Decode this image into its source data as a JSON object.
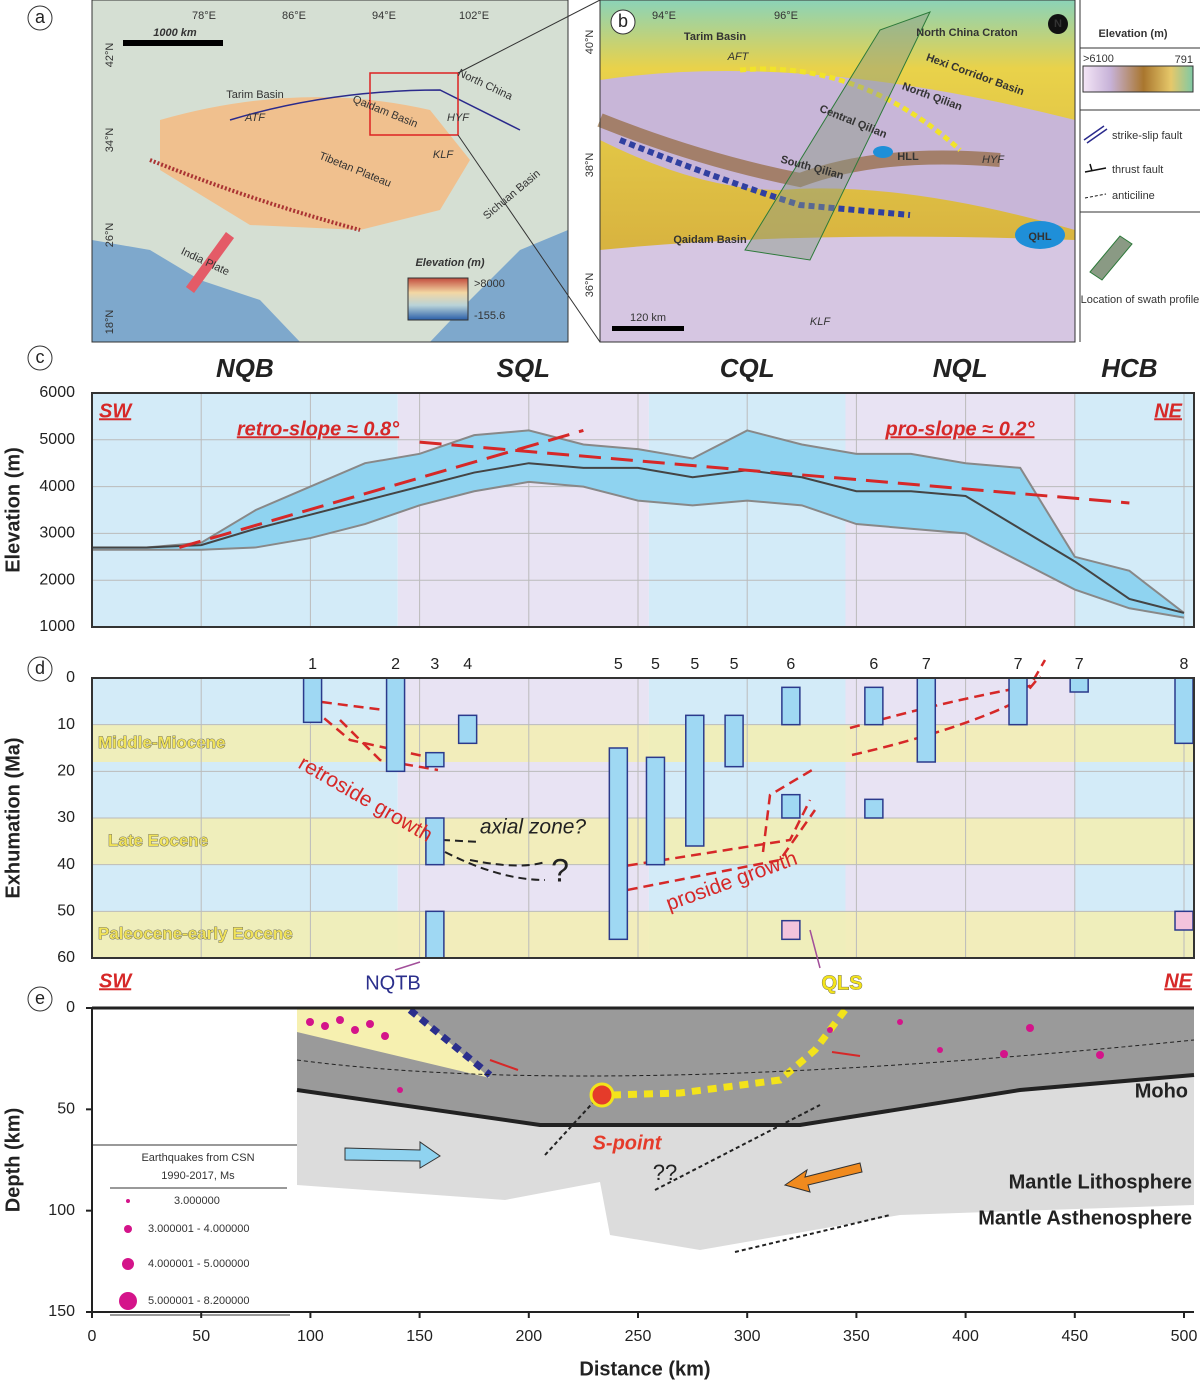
{
  "panel_a": {
    "label": "a",
    "lon": [
      "78°E",
      "86°E",
      "94°E",
      "102°E"
    ],
    "lat": [
      "42°N",
      "34°N",
      "26°N",
      "18°N"
    ],
    "scale": "1000 km",
    "places": [
      "Tarim Basin",
      "Qaidam Basin",
      "North China",
      "Tibetan Plateau",
      "Sichuan Basin",
      "India Plate",
      "ATF",
      "HYF",
      "KLF"
    ],
    "legend_title": "Elevation (m)",
    "legend_max": ">8000",
    "legend_min": "-155.6"
  },
  "panel_b": {
    "label": "b",
    "lon": [
      "94°E",
      "96°E"
    ],
    "lat": [
      "40°N",
      "38°N",
      "36°N"
    ],
    "scale": "120 km",
    "north": "N",
    "places": [
      "Tarim Basin",
      "AFT",
      "North China Craton",
      "Hexi Corridor Basin",
      "North Qilian",
      "Central Qilian",
      "South Qilian",
      "HLL",
      "HYF",
      "Qaidam Basin",
      "QHL",
      "KLF"
    ]
  },
  "legend": {
    "title": "Elevation (m)",
    "max": ">6100",
    "min": "791",
    "items": [
      "strike-slip fault",
      "thrust fault",
      "anticiline",
      "Location of swath profile"
    ]
  },
  "chart_data": [
    {
      "type": "line",
      "label": "c",
      "ylabel": "Elevation (m)",
      "xlim": [
        0,
        500
      ],
      "ylim": [
        1000,
        6000
      ],
      "yticks": [
        1000,
        2000,
        3000,
        4000,
        5000,
        6000
      ],
      "grid": true,
      "x": [
        0,
        25,
        50,
        75,
        100,
        125,
        150,
        175,
        200,
        225,
        250,
        275,
        300,
        325,
        350,
        375,
        400,
        425,
        450,
        475,
        500
      ],
      "values": [
        2700,
        2700,
        2750,
        3100,
        3400,
        3700,
        4000,
        4300,
        4500,
        4400,
        4400,
        4200,
        4350,
        4200,
        3900,
        3900,
        3800,
        3100,
        2400,
        1600,
        1300
      ],
      "upper": [
        2700,
        2700,
        2800,
        3500,
        4000,
        4500,
        4700,
        5100,
        5200,
        4900,
        4800,
        4600,
        5200,
        4900,
        4700,
        4700,
        4500,
        4400,
        2500,
        2200,
        1300
      ],
      "lower": [
        2650,
        2650,
        2650,
        2700,
        2900,
        3200,
        3600,
        3900,
        4100,
        4000,
        3700,
        3600,
        3700,
        3600,
        3200,
        3100,
        3000,
        2400,
        1800,
        1400,
        1200
      ],
      "color": "#444444",
      "envelope_color": "#888888",
      "band_color": "#8fd3f0",
      "zones": [
        {
          "name": "NQB",
          "x": [
            0,
            140
          ],
          "color": "#d3ebf8"
        },
        {
          "name": "SQL",
          "x": [
            140,
            255
          ],
          "color": "#e8e3f3"
        },
        {
          "name": "CQL",
          "x": [
            255,
            345
          ],
          "color": "#d3ebf8"
        },
        {
          "name": "NQL",
          "x": [
            345,
            450
          ],
          "color": "#e8e3f3"
        },
        {
          "name": "HCB",
          "x": [
            450,
            500
          ],
          "color": "#d3ebf8"
        }
      ],
      "annotations": [
        {
          "text": "retro-slope ≈ 0.8°",
          "x": [
            40,
            225
          ],
          "y": [
            2700,
            5200
          ]
        },
        {
          "text": "pro-slope ≈ 0.2°",
          "x": [
            150,
            475
          ],
          "y": [
            4950,
            3650
          ]
        }
      ],
      "corner_left": "SW",
      "corner_right": "NE"
    },
    {
      "type": "range_bar",
      "label": "d",
      "ylabel": "Exhumation (Ma)",
      "ylim": [
        0,
        60
      ],
      "yticks": [
        0,
        10,
        20,
        30,
        40,
        50,
        60
      ],
      "grid": true,
      "x": [
        101,
        139,
        157,
        172,
        241,
        258,
        276,
        294,
        320,
        320,
        320,
        358,
        358,
        382,
        424,
        452,
        500,
        500,
        157,
        157
      ],
      "start": [
        0,
        0,
        16,
        8,
        15,
        17,
        8,
        8,
        2,
        25,
        52,
        2,
        26,
        0,
        0,
        0,
        0,
        50,
        30,
        50
      ],
      "end": [
        9.5,
        20,
        19,
        14,
        56,
        40,
        36,
        19,
        10,
        30,
        56,
        10,
        30,
        18,
        10,
        3,
        14,
        54,
        40,
        60
      ],
      "labels": [
        "1",
        "2",
        "3",
        "4",
        "5",
        "5",
        "5",
        "5",
        "6",
        null,
        null,
        "6",
        null,
        "7",
        "7",
        "7",
        "8",
        null,
        null,
        null
      ],
      "colors": [
        "#9fd8f3",
        "#9fd8f3",
        "#9fd8f3",
        "#9fd8f3",
        "#9fd8f3",
        "#9fd8f3",
        "#9fd8f3",
        "#9fd8f3",
        "#9fd8f3",
        "#9fd8f3",
        "#f2c3dc",
        "#9fd8f3",
        "#9fd8f3",
        "#9fd8f3",
        "#9fd8f3",
        "#9fd8f3",
        "#9fd8f3",
        "#f2c3dc",
        "#9fd8f3",
        "#9fd8f3"
      ],
      "bands": [
        {
          "text": "Middle-Miocene",
          "range": [
            10,
            18
          ]
        },
        {
          "text": "Late Eocene",
          "range": [
            30,
            40
          ]
        },
        {
          "text": "Paleocene-early Eocene",
          "range": [
            50,
            60
          ]
        }
      ],
      "band_color": "#f3eeb0",
      "annotations": [
        "retroside growth",
        "axial zone?",
        "?",
        "proside growth"
      ]
    },
    {
      "type": "section",
      "label": "e",
      "ylabel": "Depth (km)",
      "xlabel": "Distance (km)",
      "xlim": [
        0,
        500
      ],
      "xticks": [
        0,
        50,
        100,
        150,
        200,
        250,
        300,
        350,
        400,
        450,
        500
      ],
      "ylim": [
        0,
        150
      ],
      "yticks": [
        0,
        50,
        100,
        150
      ],
      "corner_left": "SW",
      "corner_right": "NE",
      "labels": [
        "NQTB",
        "QLS",
        "Moho",
        "Mantle Lithosphere",
        "Mantle Asthenosphere",
        "S-point",
        "??"
      ],
      "legend_title": [
        "Earthquakes from CSN",
        "1990-2017, Ms"
      ],
      "legend_items": [
        "3.000000",
        "3.000001 - 4.000000",
        "4.000001 - 5.000000",
        "5.000001 - 8.200000"
      ]
    }
  ]
}
